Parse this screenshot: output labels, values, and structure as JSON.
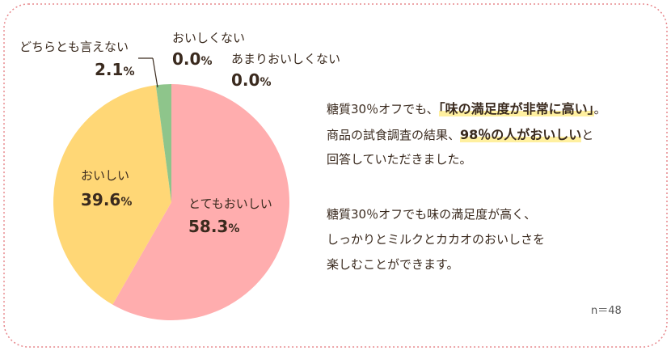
{
  "chart_data": {
    "type": "pie",
    "categories": [
      "とてもおいしい",
      "おいしい",
      "どちらとも言えない",
      "あまりおいしくない",
      "おいしくない"
    ],
    "values": [
      58.3,
      39.6,
      2.1,
      0.0,
      0.0
    ],
    "unit": "%",
    "percent_labels": [
      "58.3",
      "39.6",
      "2.1",
      "0.0",
      "0.0"
    ],
    "colors": [
      "#ffadae",
      "#ffd776",
      "#8ec58b",
      "#cccccc",
      "#cccccc"
    ],
    "n_label": "n＝48"
  },
  "text": {
    "p1_l1_a": "糖質30％オフでも、",
    "p1_l1_hl": "「味の満足度が非常に高い」",
    "p1_l1_b": "。",
    "p1_l2_a": "商品の試食調査の結果、",
    "p1_l2_hl": "98％の人がおいしい",
    "p1_l2_b": "と",
    "p1_l3": "回答していただきました。",
    "p2_l1": "糖質30％オフでも味の満足度が高く、",
    "p2_l2": "しっかりとミルクとカカオのおいしさを",
    "p2_l3": "楽しむことができます。"
  },
  "colors": {
    "frame": "#e7878c",
    "text": "#3a2a1e",
    "highlight": "#fff0a0"
  }
}
